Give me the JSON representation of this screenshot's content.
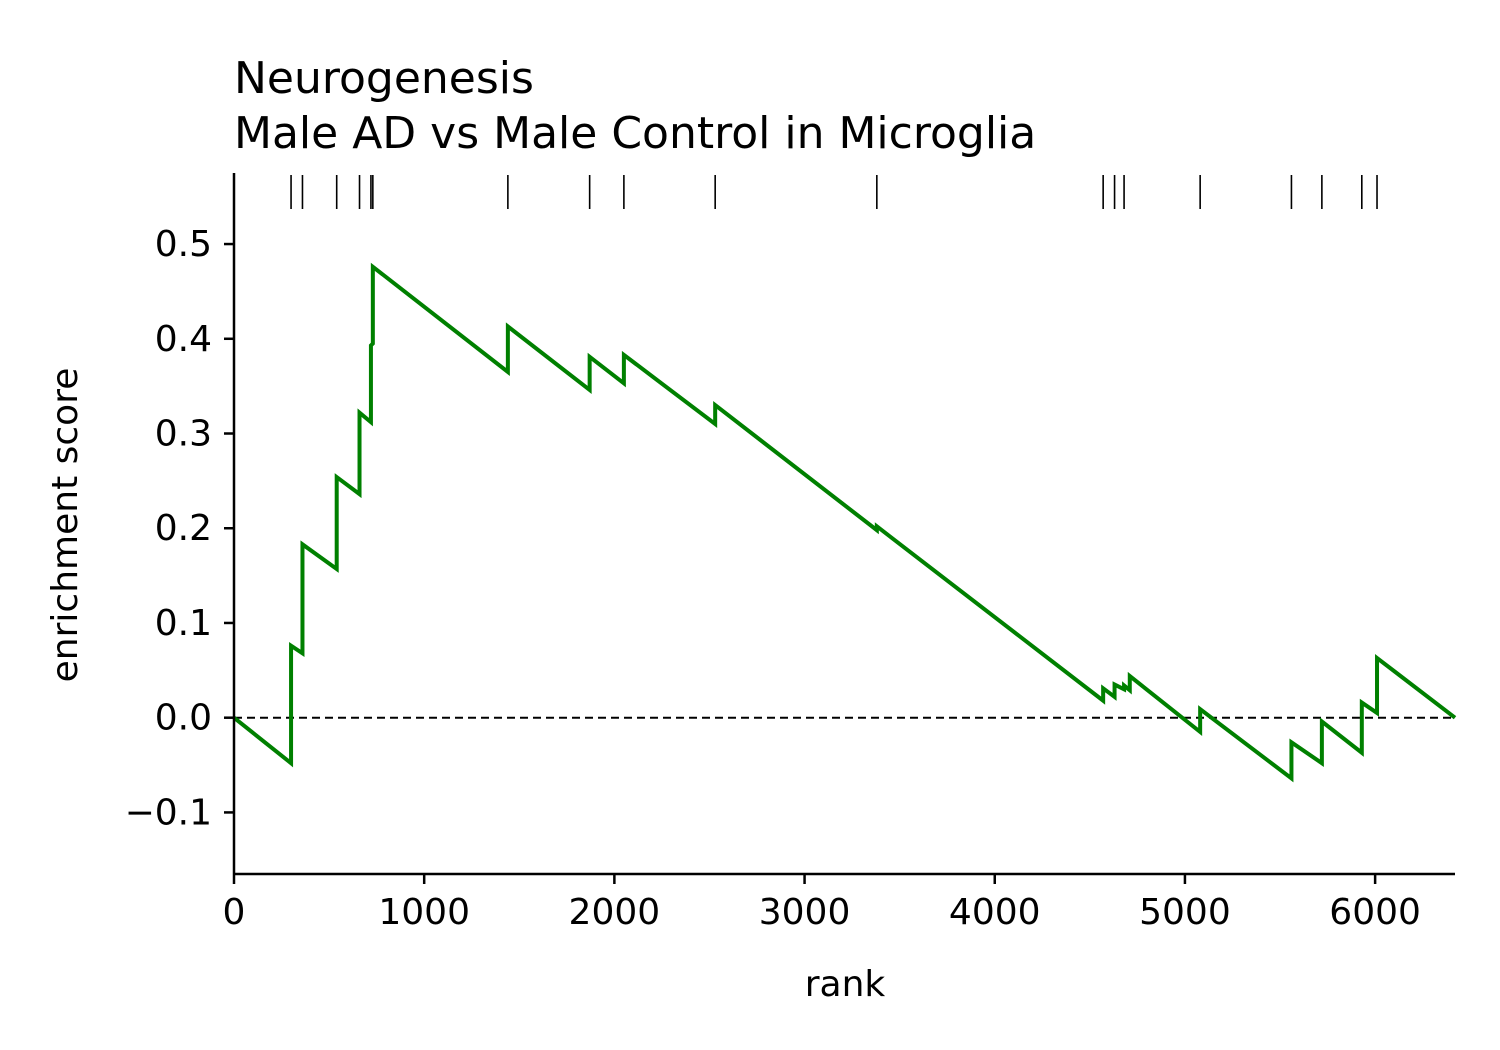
{
  "chart_data": {
    "type": "line",
    "title_line1": "Neurogenesis",
    "title_line2": "Male AD vs Male Control in Microglia",
    "xlabel": "rank",
    "ylabel": "enrichment score",
    "xlim": [
      0,
      6420
    ],
    "ylim": [
      -0.165,
      0.575
    ],
    "x_ticks": [
      0,
      1000,
      2000,
      3000,
      4000,
      5000,
      6000
    ],
    "y_ticks": [
      -0.1,
      0.0,
      0.1,
      0.2,
      0.3,
      0.4,
      0.5
    ],
    "x_tick_labels": [
      "0",
      "1000",
      "2000",
      "3000",
      "4000",
      "5000",
      "6000"
    ],
    "y_tick_labels": [
      "−0.1",
      "0.0",
      "0.1",
      "0.2",
      "0.3",
      "0.4",
      "0.5"
    ],
    "baseline": 0.0,
    "line_color": "#008000",
    "hit_ranks": [
      300,
      360,
      540,
      660,
      720,
      730,
      1440,
      1870,
      2050,
      2530,
      3380,
      4570,
      4630,
      4680,
      5080,
      5560,
      5720,
      5930,
      6010
    ],
    "series": [
      {
        "x": [
          0,
          300,
          300,
          360,
          360,
          540,
          540,
          660,
          660,
          720,
          720,
          730,
          730,
          1440,
          1440,
          1870,
          1870,
          2050,
          2050,
          2530,
          2530,
          3380,
          3380,
          4570,
          4570,
          4630,
          4630,
          4680,
          4680,
          4710,
          4710,
          5080,
          5080,
          5560,
          5560,
          5720,
          5720,
          5930,
          5930,
          6010,
          6010,
          6420
        ],
        "y": [
          0.0,
          -0.048,
          0.076,
          0.068,
          0.183,
          0.157,
          0.254,
          0.236,
          0.322,
          0.312,
          0.393,
          0.395,
          0.476,
          0.365,
          0.413,
          0.346,
          0.381,
          0.353,
          0.383,
          0.31,
          0.33,
          0.198,
          0.202,
          0.018,
          0.031,
          0.022,
          0.035,
          0.03,
          0.034,
          0.029,
          0.044,
          -0.015,
          0.009,
          -0.064,
          -0.026,
          -0.048,
          -0.004,
          -0.037,
          0.016,
          0.005,
          0.063,
          0.0
        ]
      }
    ]
  }
}
